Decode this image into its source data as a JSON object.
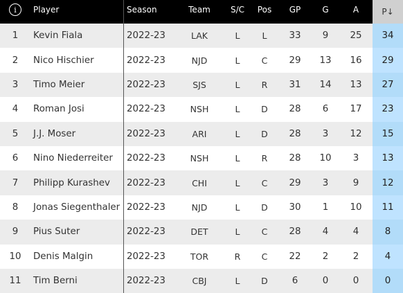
{
  "header": {
    "info_icon": "i",
    "player": "Player",
    "season": "Season",
    "team": "Team",
    "sc": "S/C",
    "pos": "Pos",
    "gp": "GP",
    "g": "G",
    "a": "A",
    "p": "P↓"
  },
  "rows": [
    {
      "num": "1",
      "player": "Kevin Fiala",
      "season": "2022-23",
      "team": "LAK",
      "sc": "L",
      "pos": "L",
      "gp": "33",
      "g": "9",
      "a": "25",
      "p": "34"
    },
    {
      "num": "2",
      "player": "Nico Hischier",
      "season": "2022-23",
      "team": "NJD",
      "sc": "L",
      "pos": "C",
      "gp": "29",
      "g": "13",
      "a": "16",
      "p": "29"
    },
    {
      "num": "3",
      "player": "Timo Meier",
      "season": "2022-23",
      "team": "SJS",
      "sc": "L",
      "pos": "R",
      "gp": "31",
      "g": "14",
      "a": "13",
      "p": "27"
    },
    {
      "num": "4",
      "player": "Roman Josi",
      "season": "2022-23",
      "team": "NSH",
      "sc": "L",
      "pos": "D",
      "gp": "28",
      "g": "6",
      "a": "17",
      "p": "23"
    },
    {
      "num": "5",
      "player": "J.J. Moser",
      "season": "2022-23",
      "team": "ARI",
      "sc": "L",
      "pos": "D",
      "gp": "28",
      "g": "3",
      "a": "12",
      "p": "15"
    },
    {
      "num": "6",
      "player": "Nino Niederreiter",
      "season": "2022-23",
      "team": "NSH",
      "sc": "L",
      "pos": "R",
      "gp": "28",
      "g": "10",
      "a": "3",
      "p": "13"
    },
    {
      "num": "7",
      "player": "Philipp Kurashev",
      "season": "2022-23",
      "team": "CHI",
      "sc": "L",
      "pos": "C",
      "gp": "29",
      "g": "3",
      "a": "9",
      "p": "12"
    },
    {
      "num": "8",
      "player": "Jonas Siegenthaler",
      "season": "2022-23",
      "team": "NJD",
      "sc": "L",
      "pos": "D",
      "gp": "30",
      "g": "1",
      "a": "10",
      "p": "11"
    },
    {
      "num": "9",
      "player": "Pius Suter",
      "season": "2022-23",
      "team": "DET",
      "sc": "L",
      "pos": "C",
      "gp": "28",
      "g": "4",
      "a": "4",
      "p": "8"
    },
    {
      "num": "10",
      "player": "Denis Malgin",
      "season": "2022-23",
      "team": "TOR",
      "sc": "R",
      "pos": "C",
      "gp": "22",
      "g": "2",
      "a": "2",
      "p": "4"
    },
    {
      "num": "11",
      "player": "Tim Berni",
      "season": "2022-23",
      "team": "CBJ",
      "sc": "L",
      "pos": "D",
      "gp": "6",
      "g": "0",
      "a": "0",
      "p": "0"
    }
  ]
}
